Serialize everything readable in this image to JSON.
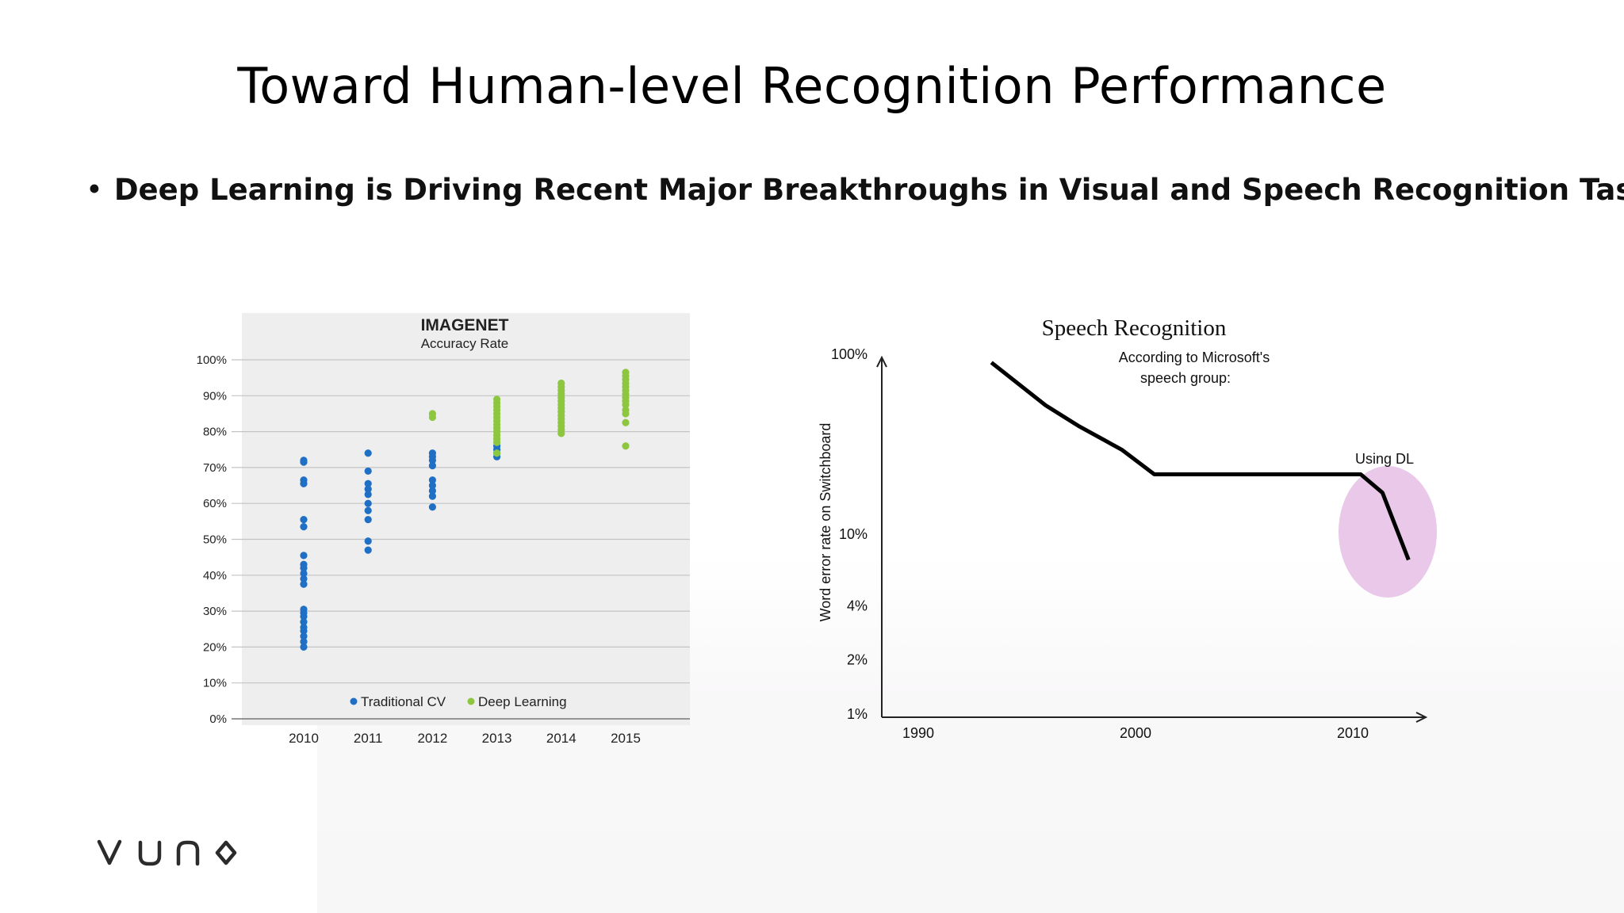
{
  "slide": {
    "title": "Toward Human-level Recognition Performance",
    "bullet_symbol": "•",
    "bullet": "Deep Learning is Driving Recent Major Breakthroughs in Visual and Speech Recognition Tasks",
    "logo_text": "vuno"
  },
  "chart_data": [
    {
      "type": "scatter",
      "title": "IMAGENET",
      "subtitle": "Accuracy Rate",
      "xlabel": "",
      "ylabel": "",
      "categories": [
        "2010",
        "2011",
        "2012",
        "2013",
        "2014",
        "2015"
      ],
      "y_ticks": [
        "0%",
        "10%",
        "20%",
        "30%",
        "40%",
        "50%",
        "60%",
        "70%",
        "80%",
        "90%",
        "100%"
      ],
      "ylim": [
        0,
        100
      ],
      "grid": true,
      "legend_position": "bottom",
      "background": "#eeeeee",
      "series": [
        {
          "name": "Traditional CV",
          "color": "#1f6fc5",
          "points": [
            [
              "2010",
              72
            ],
            [
              "2010",
              71.5
            ],
            [
              "2010",
              66.5
            ],
            [
              "2010",
              65.5
            ],
            [
              "2010",
              55.5
            ],
            [
              "2010",
              53.5
            ],
            [
              "2010",
              45.5
            ],
            [
              "2010",
              43
            ],
            [
              "2010",
              42
            ],
            [
              "2010",
              40.5
            ],
            [
              "2010",
              39
            ],
            [
              "2010",
              37.5
            ],
            [
              "2010",
              30.5
            ],
            [
              "2010",
              29.5
            ],
            [
              "2010",
              28.5
            ],
            [
              "2010",
              27
            ],
            [
              "2010",
              25.5
            ],
            [
              "2010",
              24.5
            ],
            [
              "2010",
              23
            ],
            [
              "2010",
              21.5
            ],
            [
              "2010",
              20
            ],
            [
              "2011",
              74
            ],
            [
              "2011",
              69
            ],
            [
              "2011",
              65.5
            ],
            [
              "2011",
              64
            ],
            [
              "2011",
              62.5
            ],
            [
              "2011",
              60
            ],
            [
              "2011",
              58
            ],
            [
              "2011",
              55.5
            ],
            [
              "2011",
              49.5
            ],
            [
              "2011",
              47
            ],
            [
              "2012",
              74
            ],
            [
              "2012",
              73
            ],
            [
              "2012",
              72
            ],
            [
              "2012",
              70.5
            ],
            [
              "2012",
              66.5
            ],
            [
              "2012",
              65
            ],
            [
              "2012",
              63.5
            ],
            [
              "2012",
              62
            ],
            [
              "2012",
              59
            ],
            [
              "2013",
              76
            ],
            [
              "2013",
              75
            ],
            [
              "2013",
              74
            ],
            [
              "2013",
              73
            ]
          ]
        },
        {
          "name": "Deep Learning",
          "color": "#8dc63f",
          "points": [
            [
              "2012",
              85
            ],
            [
              "2012",
              84
            ],
            [
              "2013",
              89
            ],
            [
              "2013",
              88
            ],
            [
              "2013",
              87
            ],
            [
              "2013",
              86
            ],
            [
              "2013",
              85
            ],
            [
              "2013",
              84
            ],
            [
              "2013",
              83
            ],
            [
              "2013",
              82
            ],
            [
              "2013",
              81
            ],
            [
              "2013",
              80
            ],
            [
              "2013",
              79
            ],
            [
              "2013",
              78
            ],
            [
              "2013",
              77
            ],
            [
              "2013",
              74
            ],
            [
              "2014",
              93.5
            ],
            [
              "2014",
              92.5
            ],
            [
              "2014",
              91.5
            ],
            [
              "2014",
              90.5
            ],
            [
              "2014",
              89.5
            ],
            [
              "2014",
              88.5
            ],
            [
              "2014",
              87.5
            ],
            [
              "2014",
              86.5
            ],
            [
              "2014",
              85.5
            ],
            [
              "2014",
              84.5
            ],
            [
              "2014",
              83.5
            ],
            [
              "2014",
              82.5
            ],
            [
              "2014",
              81.5
            ],
            [
              "2014",
              80.5
            ],
            [
              "2014",
              79.5
            ],
            [
              "2015",
              96.5
            ],
            [
              "2015",
              95.5
            ],
            [
              "2015",
              94.5
            ],
            [
              "2015",
              93.5
            ],
            [
              "2015",
              92.5
            ],
            [
              "2015",
              91.5
            ],
            [
              "2015",
              90.5
            ],
            [
              "2015",
              89.5
            ],
            [
              "2015",
              88.5
            ],
            [
              "2015",
              87.5
            ],
            [
              "2015",
              86
            ],
            [
              "2015",
              85
            ],
            [
              "2015",
              82.5
            ],
            [
              "2015",
              76
            ]
          ]
        }
      ]
    },
    {
      "type": "line",
      "title": "Speech Recognition",
      "subtitle": "According to Microsoft's speech group:",
      "xlabel": "",
      "ylabel": "Word error rate on Switchboard",
      "x_ticks": [
        "1990",
        "2000",
        "2010"
      ],
      "y_ticks": [
        "100%",
        "10%",
        "4%",
        "2%",
        "1%"
      ],
      "y_scale": "log",
      "xlim": [
        1988,
        2013
      ],
      "ylim": [
        1,
        100
      ],
      "grid": false,
      "annotation": {
        "text": "Using DL",
        "highlight_color": "#e9c8ea"
      },
      "series": [
        {
          "color": "#000000",
          "points": [
            [
              1993,
              90
            ],
            [
              1995.5,
              52
            ],
            [
              1997,
              40
            ],
            [
              1999,
              29.5
            ],
            [
              2000.5,
              21.5
            ],
            [
              2010,
              21.5
            ],
            [
              2011,
              17
            ],
            [
              2012.2,
              7.2
            ]
          ]
        }
      ]
    }
  ]
}
